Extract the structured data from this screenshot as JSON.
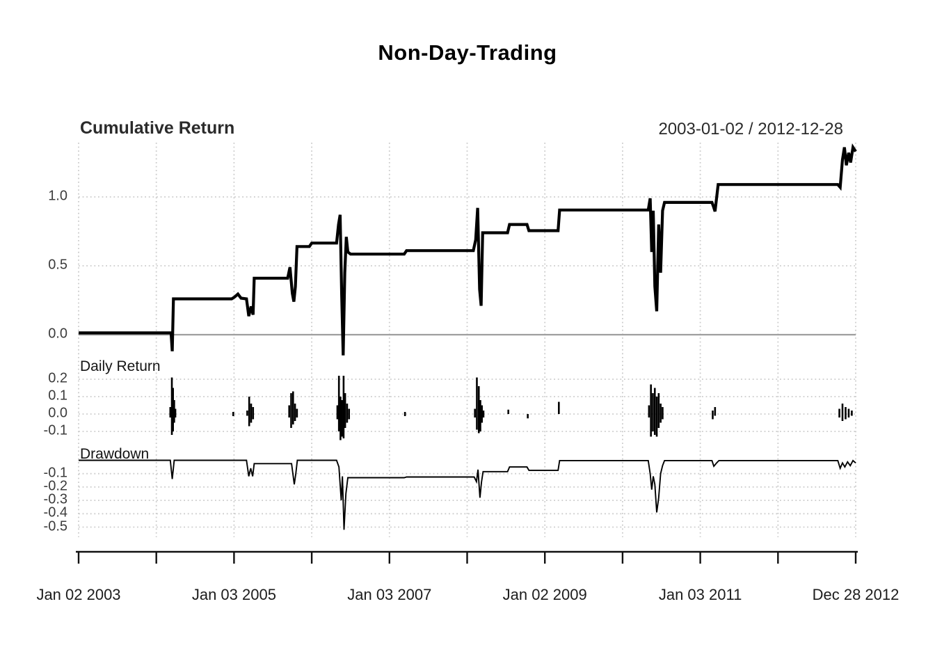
{
  "title": "Non-Day-Trading",
  "header": {
    "date_range": "2003-01-02 / 2012-12-28"
  },
  "colors": {
    "line": "#000000",
    "grid": "#cbcbcb",
    "zero_line": "#9e9e9e",
    "axis": "#111111"
  },
  "x_axis": {
    "start": 2003,
    "end": 2013,
    "ticks": [
      2003,
      2004,
      2005,
      2006,
      2007,
      2008,
      2009,
      2010,
      2011,
      2012,
      2013
    ],
    "labels": [
      {
        "x": 2003,
        "text": "Jan 02 2003"
      },
      {
        "x": 2005,
        "text": "Jan 03 2005"
      },
      {
        "x": 2007,
        "text": "Jan 03 2007"
      },
      {
        "x": 2009,
        "text": "Jan 02 2009"
      },
      {
        "x": 2011,
        "text": "Jan 03 2011"
      },
      {
        "x": 2013,
        "text": "Dec 28 2012"
      }
    ]
  },
  "chart_data": [
    {
      "panel": "cumulative-return",
      "type": "line",
      "label": "Cumulative Return",
      "ylim": [
        -0.17,
        1.4
      ],
      "grid": true,
      "zero_line": true,
      "yticks": [
        {
          "v": 1.0,
          "label": "1.0"
        },
        {
          "v": 0.5,
          "label": "0.5"
        },
        {
          "v": 0.0,
          "label": "0.0"
        }
      ],
      "points": [
        [
          2003.0,
          0.013
        ],
        [
          2004.19,
          0.013
        ],
        [
          2004.205,
          -0.12
        ],
        [
          2004.22,
          0.26
        ],
        [
          2004.97,
          0.26
        ],
        [
          2005.01,
          0.275
        ],
        [
          2005.05,
          0.295
        ],
        [
          2005.09,
          0.265
        ],
        [
          2005.16,
          0.26
        ],
        [
          2005.19,
          0.135
        ],
        [
          2005.22,
          0.205
        ],
        [
          2005.245,
          0.145
        ],
        [
          2005.26,
          0.41
        ],
        [
          2005.69,
          0.41
        ],
        [
          2005.72,
          0.49
        ],
        [
          2005.75,
          0.3
        ],
        [
          2005.77,
          0.24
        ],
        [
          2005.79,
          0.35
        ],
        [
          2005.81,
          0.64
        ],
        [
          2005.97,
          0.64
        ],
        [
          2006.0,
          0.665
        ],
        [
          2006.32,
          0.665
        ],
        [
          2006.345,
          0.8
        ],
        [
          2006.365,
          0.87
        ],
        [
          2006.385,
          0.3
        ],
        [
          2006.405,
          -0.15
        ],
        [
          2006.425,
          0.45
        ],
        [
          2006.445,
          0.71
        ],
        [
          2006.465,
          0.6
        ],
        [
          2006.5,
          0.585
        ],
        [
          2007.19,
          0.585
        ],
        [
          2007.22,
          0.61
        ],
        [
          2008.08,
          0.61
        ],
        [
          2008.11,
          0.69
        ],
        [
          2008.135,
          0.92
        ],
        [
          2008.16,
          0.33
        ],
        [
          2008.18,
          0.21
        ],
        [
          2008.2,
          0.74
        ],
        [
          2008.52,
          0.74
        ],
        [
          2008.545,
          0.8
        ],
        [
          2008.77,
          0.8
        ],
        [
          2008.795,
          0.755
        ],
        [
          2009.17,
          0.755
        ],
        [
          2009.19,
          0.905
        ],
        [
          2010.33,
          0.905
        ],
        [
          2010.355,
          0.99
        ],
        [
          2010.375,
          0.6
        ],
        [
          2010.395,
          0.9
        ],
        [
          2010.415,
          0.35
        ],
        [
          2010.44,
          0.17
        ],
        [
          2010.465,
          0.8
        ],
        [
          2010.49,
          0.45
        ],
        [
          2010.515,
          0.9
        ],
        [
          2010.54,
          0.96
        ],
        [
          2011.15,
          0.96
        ],
        [
          2011.17,
          0.93
        ],
        [
          2011.19,
          0.895
        ],
        [
          2011.23,
          1.09
        ],
        [
          2012.77,
          1.09
        ],
        [
          2012.8,
          1.07
        ],
        [
          2012.83,
          1.27
        ],
        [
          2012.855,
          1.36
        ],
        [
          2012.88,
          1.23
        ],
        [
          2012.91,
          1.32
        ],
        [
          2012.935,
          1.25
        ],
        [
          2012.965,
          1.36
        ],
        [
          2013.0,
          1.33
        ]
      ]
    },
    {
      "panel": "daily-return",
      "type": "hbar",
      "label": "Daily Return",
      "ylim": [
        -0.17,
        0.25
      ],
      "grid": true,
      "yticks": [
        {
          "v": 0.2,
          "label": "0.2"
        },
        {
          "v": 0.1,
          "label": "0.1"
        },
        {
          "v": 0.0,
          "label": "0.0"
        },
        {
          "v": -0.1,
          "label": "-0.1"
        }
      ],
      "bars": [
        [
          2004.18,
          -0.02,
          0.04
        ],
        [
          2004.2,
          -0.12,
          0.21
        ],
        [
          2004.215,
          -0.1,
          0.15
        ],
        [
          2004.23,
          -0.05,
          0.08
        ],
        [
          2004.245,
          -0.02,
          0.03
        ],
        [
          2004.99,
          -0.012,
          0.012
        ],
        [
          2005.17,
          -0.01,
          0.02
        ],
        [
          2005.195,
          -0.07,
          0.1
        ],
        [
          2005.22,
          -0.05,
          0.06
        ],
        [
          2005.245,
          -0.03,
          0.04
        ],
        [
          2005.71,
          -0.02,
          0.05
        ],
        [
          2005.735,
          -0.08,
          0.12
        ],
        [
          2005.76,
          -0.06,
          0.13
        ],
        [
          2005.785,
          -0.04,
          0.06
        ],
        [
          2005.81,
          -0.02,
          0.03
        ],
        [
          2006.33,
          -0.03,
          0.05
        ],
        [
          2006.35,
          -0.1,
          0.22
        ],
        [
          2006.37,
          -0.15,
          0.1
        ],
        [
          2006.39,
          -0.13,
          0.08
        ],
        [
          2006.41,
          -0.14,
          0.22
        ],
        [
          2006.43,
          -0.08,
          0.12
        ],
        [
          2006.455,
          -0.05,
          0.06
        ],
        [
          2006.48,
          -0.03,
          0.03
        ],
        [
          2007.2,
          -0.012,
          0.012
        ],
        [
          2008.1,
          -0.02,
          0.03
        ],
        [
          2008.125,
          -0.09,
          0.21
        ],
        [
          2008.15,
          -0.11,
          0.16
        ],
        [
          2008.17,
          -0.1,
          0.08
        ],
        [
          2008.19,
          -0.05,
          0.05
        ],
        [
          2008.21,
          -0.02,
          0.02
        ],
        [
          2008.53,
          0.0,
          0.025
        ],
        [
          2008.78,
          -0.025,
          0.0
        ],
        [
          2009.18,
          0.0,
          0.07
        ],
        [
          2010.34,
          -0.02,
          0.05
        ],
        [
          2010.365,
          -0.13,
          0.17
        ],
        [
          2010.39,
          -0.1,
          0.12
        ],
        [
          2010.415,
          -0.12,
          0.15
        ],
        [
          2010.44,
          -0.13,
          0.1
        ],
        [
          2010.465,
          -0.08,
          0.12
        ],
        [
          2010.49,
          -0.05,
          0.06
        ],
        [
          2010.515,
          -0.03,
          0.04
        ],
        [
          2011.16,
          -0.03,
          0.02
        ],
        [
          2011.19,
          -0.01,
          0.04
        ],
        [
          2012.79,
          -0.02,
          0.03
        ],
        [
          2012.83,
          -0.04,
          0.06
        ],
        [
          2012.87,
          -0.03,
          0.04
        ],
        [
          2012.91,
          -0.02,
          0.03
        ],
        [
          2012.95,
          -0.01,
          0.02
        ]
      ]
    },
    {
      "panel": "drawdown",
      "type": "line",
      "label": "Drawdown",
      "ylim": [
        -0.55,
        0.02
      ],
      "grid": true,
      "yticks": [
        {
          "v": -0.1,
          "label": "-0.1"
        },
        {
          "v": -0.2,
          "label": "-0.2"
        },
        {
          "v": -0.3,
          "label": "-0.3"
        },
        {
          "v": -0.4,
          "label": "-0.4"
        },
        {
          "v": -0.5,
          "label": "-0.5"
        }
      ],
      "points": [
        [
          2003.0,
          0.0
        ],
        [
          2004.18,
          0.0
        ],
        [
          2004.205,
          -0.14
        ],
        [
          2004.23,
          0.0
        ],
        [
          2005.16,
          0.0
        ],
        [
          2005.19,
          -0.12
        ],
        [
          2005.215,
          -0.06
        ],
        [
          2005.24,
          -0.12
        ],
        [
          2005.26,
          -0.025
        ],
        [
          2005.74,
          -0.025
        ],
        [
          2005.775,
          -0.18
        ],
        [
          2005.795,
          -0.1
        ],
        [
          2005.815,
          0.0
        ],
        [
          2006.32,
          0.0
        ],
        [
          2006.35,
          -0.05
        ],
        [
          2006.38,
          -0.3
        ],
        [
          2006.395,
          -0.12
        ],
        [
          2006.415,
          -0.52
        ],
        [
          2006.44,
          -0.25
        ],
        [
          2006.465,
          -0.13
        ],
        [
          2007.19,
          -0.13
        ],
        [
          2007.22,
          -0.125
        ],
        [
          2008.09,
          -0.125
        ],
        [
          2008.12,
          -0.16
        ],
        [
          2008.14,
          -0.07
        ],
        [
          2008.165,
          -0.28
        ],
        [
          2008.185,
          -0.16
        ],
        [
          2008.205,
          -0.085
        ],
        [
          2008.52,
          -0.085
        ],
        [
          2008.545,
          -0.05
        ],
        [
          2008.77,
          -0.05
        ],
        [
          2008.795,
          -0.075
        ],
        [
          2009.17,
          -0.075
        ],
        [
          2009.19,
          -0.002
        ],
        [
          2010.33,
          -0.002
        ],
        [
          2010.355,
          -0.1
        ],
        [
          2010.375,
          -0.22
        ],
        [
          2010.395,
          -0.12
        ],
        [
          2010.415,
          -0.18
        ],
        [
          2010.44,
          -0.39
        ],
        [
          2010.465,
          -0.28
        ],
        [
          2010.49,
          -0.1
        ],
        [
          2010.515,
          -0.04
        ],
        [
          2010.54,
          -0.002
        ],
        [
          2011.15,
          -0.002
        ],
        [
          2011.175,
          -0.045
        ],
        [
          2011.21,
          -0.02
        ],
        [
          2011.24,
          -0.002
        ],
        [
          2012.77,
          -0.002
        ],
        [
          2012.8,
          -0.06
        ],
        [
          2012.83,
          -0.02
        ],
        [
          2012.86,
          -0.05
        ],
        [
          2012.895,
          -0.012
        ],
        [
          2012.93,
          -0.04
        ],
        [
          2012.965,
          -0.002
        ],
        [
          2013.0,
          -0.02
        ]
      ]
    }
  ]
}
